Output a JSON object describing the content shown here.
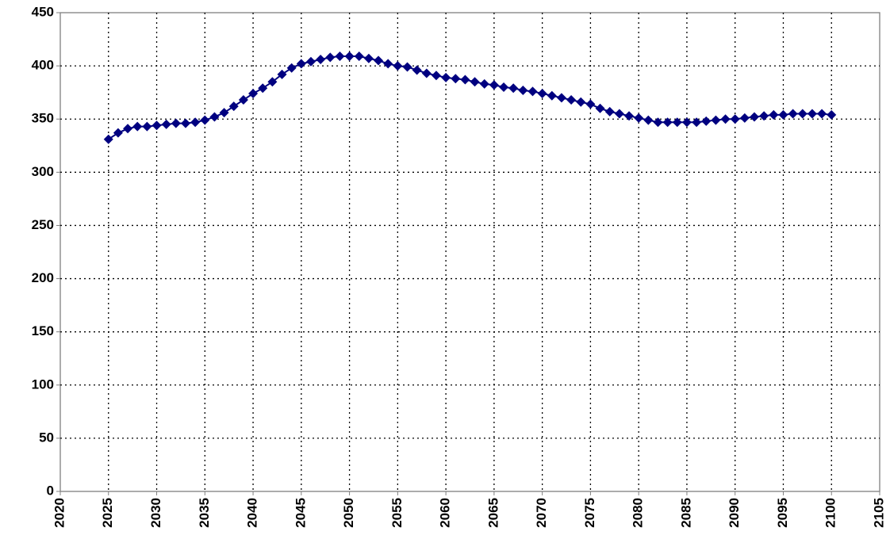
{
  "chart_data": {
    "type": "line",
    "marker": "diamond",
    "grid": true,
    "x": [
      2025,
      2026,
      2027,
      2028,
      2029,
      2030,
      2031,
      2032,
      2033,
      2034,
      2035,
      2036,
      2037,
      2038,
      2039,
      2040,
      2041,
      2042,
      2043,
      2044,
      2045,
      2046,
      2047,
      2048,
      2049,
      2050,
      2051,
      2052,
      2053,
      2054,
      2055,
      2056,
      2057,
      2058,
      2059,
      2060,
      2061,
      2062,
      2063,
      2064,
      2065,
      2066,
      2067,
      2068,
      2069,
      2070,
      2071,
      2072,
      2073,
      2074,
      2075,
      2076,
      2077,
      2078,
      2079,
      2080,
      2081,
      2082,
      2083,
      2084,
      2085,
      2086,
      2087,
      2088,
      2089,
      2090,
      2091,
      2092,
      2093,
      2094,
      2095,
      2096,
      2097,
      2098,
      2099,
      2100
    ],
    "series": [
      {
        "color": "#000080",
        "values": [
          331,
          337,
          341,
          343,
          343,
          344,
          345,
          346,
          346,
          347,
          349,
          352,
          356,
          362,
          368,
          374,
          379,
          385,
          392,
          398,
          402,
          404,
          406,
          408,
          409,
          409,
          409,
          407,
          405,
          402,
          400,
          399,
          396,
          393,
          391,
          389,
          388,
          387,
          385,
          383,
          382,
          380,
          379,
          377,
          376,
          374,
          372,
          370,
          368,
          366,
          364,
          360,
          357,
          355,
          353,
          351,
          349,
          347,
          347,
          347,
          347,
          347,
          348,
          349,
          350,
          350,
          351,
          352,
          353,
          354,
          354,
          355,
          355,
          355,
          355,
          354
        ]
      }
    ],
    "xlim": [
      2020,
      2105
    ],
    "xticks": [
      2020,
      2025,
      2030,
      2035,
      2040,
      2045,
      2050,
      2055,
      2060,
      2065,
      2070,
      2075,
      2080,
      2085,
      2090,
      2095,
      2100,
      2105
    ],
    "ylim": [
      0,
      450
    ],
    "yticks": [
      0,
      50,
      100,
      150,
      200,
      250,
      300,
      350,
      400,
      450
    ]
  }
}
